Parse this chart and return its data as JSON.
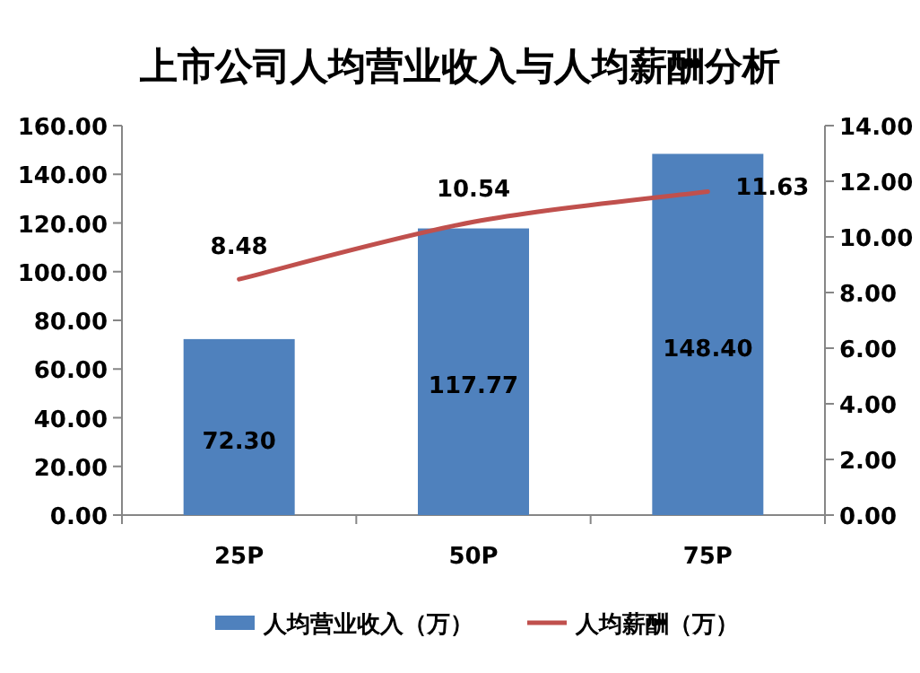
{
  "chart_data": {
    "type": "bar",
    "title": "上市公司人均营业收入与人均薪酬分析",
    "categories": [
      "25P",
      "50P",
      "75P"
    ],
    "series": [
      {
        "name": "人均营业收入（万）",
        "color": "#4f81bd",
        "values": [
          72.3,
          117.77,
          148.4
        ],
        "value_labels": [
          "72.30",
          "117.77",
          "148.40"
        ]
      },
      {
        "name": "人均薪酬（万）",
        "type": "line",
        "axis": "y2",
        "color": "#c0504d",
        "values": [
          8.48,
          10.54,
          11.63
        ],
        "value_labels": [
          "8.48",
          "10.54",
          "11.63"
        ]
      }
    ],
    "ylim": [
      0,
      160
    ],
    "yticks": [
      {
        "value": 0,
        "label": "0.00"
      },
      {
        "value": 20,
        "label": "20.00"
      },
      {
        "value": 40,
        "label": "40.00"
      },
      {
        "value": 60,
        "label": "60.00"
      },
      {
        "value": 80,
        "label": "80.00"
      },
      {
        "value": 100,
        "label": "100.00"
      },
      {
        "value": 120,
        "label": "120.00"
      },
      {
        "value": 140,
        "label": "140.00"
      },
      {
        "value": 160,
        "label": "160.00"
      }
    ],
    "y2lim": [
      0,
      14
    ],
    "y2ticks": [
      {
        "value": 0,
        "label": "0.00"
      },
      {
        "value": 2,
        "label": "2.00"
      },
      {
        "value": 4,
        "label": "4.00"
      },
      {
        "value": 6,
        "label": "6.00"
      },
      {
        "value": 8,
        "label": "8.00"
      },
      {
        "value": 10,
        "label": "10.00"
      },
      {
        "value": 12,
        "label": "12.00"
      },
      {
        "value": 14,
        "label": "14.00"
      }
    ],
    "legend": "bottom",
    "marker": "none"
  }
}
